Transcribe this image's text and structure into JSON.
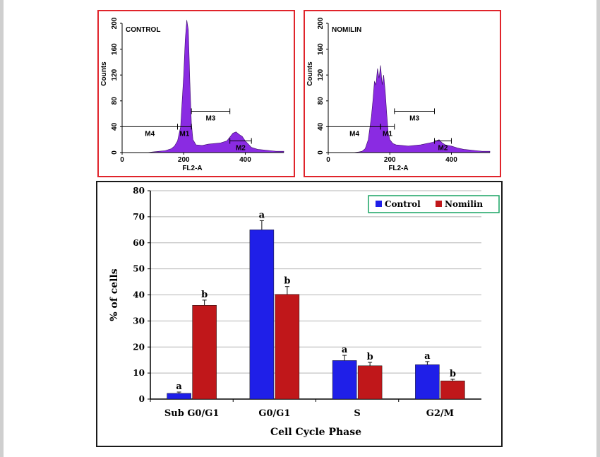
{
  "histograms": [
    {
      "label": "CONTROL",
      "x_axis_title": "FL2-A",
      "y_axis_title": "Counts",
      "x_ticks": [
        "0",
        "200",
        "400"
      ],
      "y_ticks": [
        "0",
        "40",
        "80",
        "120",
        "160",
        "200"
      ],
      "markers": [
        "M4",
        "M1",
        "M3",
        "M2"
      ]
    },
    {
      "label": "NOMILIN",
      "x_axis_title": "FL2-A",
      "y_axis_title": "Counts",
      "x_ticks": [
        "0",
        "200",
        "400"
      ],
      "y_ticks": [
        "0",
        "40",
        "80",
        "120",
        "160",
        "200"
      ],
      "markers": [
        "M4",
        "M1",
        "M3",
        "M2"
      ]
    }
  ],
  "chart_data": [
    {
      "type": "area",
      "title": "CONTROL",
      "xlabel": "FL2-A",
      "ylabel": "Counts",
      "xlim": [
        0,
        525
      ],
      "ylim": [
        0,
        200
      ],
      "color": "#8a2be2",
      "x": [
        0,
        80,
        100,
        120,
        140,
        160,
        170,
        180,
        190,
        200,
        205,
        210,
        215,
        220,
        225,
        230,
        240,
        260,
        280,
        300,
        320,
        340,
        350,
        360,
        370,
        380,
        390,
        400,
        420,
        440,
        460,
        480,
        500,
        525
      ],
      "y": [
        0,
        0,
        1,
        2,
        3,
        6,
        10,
        18,
        40,
        120,
        175,
        205,
        190,
        110,
        45,
        20,
        12,
        11,
        13,
        14,
        15,
        18,
        24,
        30,
        32,
        28,
        25,
        18,
        8,
        5,
        4,
        3,
        2,
        2
      ],
      "gates": [
        {
          "name": "M4",
          "start": 0,
          "end": 180
        },
        {
          "name": "M1",
          "start": 180,
          "end": 225
        },
        {
          "name": "M3",
          "start": 225,
          "end": 350
        },
        {
          "name": "M2",
          "start": 350,
          "end": 420
        }
      ]
    },
    {
      "type": "area",
      "title": "NOMILIN",
      "xlabel": "FL2-A",
      "ylabel": "Counts",
      "xlim": [
        0,
        525
      ],
      "ylim": [
        0,
        200
      ],
      "color": "#8a2be2",
      "x": [
        0,
        80,
        100,
        110,
        120,
        130,
        140,
        145,
        150,
        155,
        160,
        165,
        170,
        175,
        180,
        185,
        190,
        195,
        200,
        210,
        220,
        240,
        260,
        280,
        300,
        320,
        340,
        360,
        370,
        380,
        400,
        420,
        440,
        460,
        480,
        500,
        525
      ],
      "y": [
        0,
        0,
        1,
        2,
        6,
        20,
        55,
        80,
        110,
        105,
        130,
        115,
        135,
        105,
        120,
        95,
        60,
        30,
        20,
        14,
        12,
        11,
        10,
        11,
        12,
        14,
        16,
        20,
        15,
        12,
        10,
        7,
        5,
        4,
        3,
        2,
        2
      ],
      "gates": [
        {
          "name": "M4",
          "start": 0,
          "end": 170
        },
        {
          "name": "M1",
          "start": 170,
          "end": 215
        },
        {
          "name": "M3",
          "start": 215,
          "end": 345
        },
        {
          "name": "M2",
          "start": 345,
          "end": 400
        }
      ]
    },
    {
      "type": "bar",
      "title": "",
      "xlabel": "Cell Cycle Phase",
      "ylabel": "% of cells",
      "ylim": [
        0,
        80
      ],
      "yticks": [
        0,
        10,
        20,
        30,
        40,
        50,
        60,
        70,
        80
      ],
      "grid": true,
      "legend": "top-right",
      "categories": [
        "Sub G0/G1",
        "G0/G1",
        "S",
        "G2/M"
      ],
      "series": [
        {
          "name": "Control",
          "color": "#1f1fe8",
          "values": [
            2.2,
            65,
            14.8,
            13.2
          ],
          "errors": [
            0.5,
            3.5,
            2,
            1.2
          ],
          "labels": [
            "a",
            "a",
            "a",
            "a"
          ]
        },
        {
          "name": "Nomilin",
          "color": "#c0171a",
          "values": [
            36,
            40.2,
            12.8,
            7
          ],
          "errors": [
            2,
            3,
            1.3,
            0.6
          ],
          "labels": [
            "b",
            "b",
            "b",
            "b"
          ]
        }
      ]
    }
  ]
}
